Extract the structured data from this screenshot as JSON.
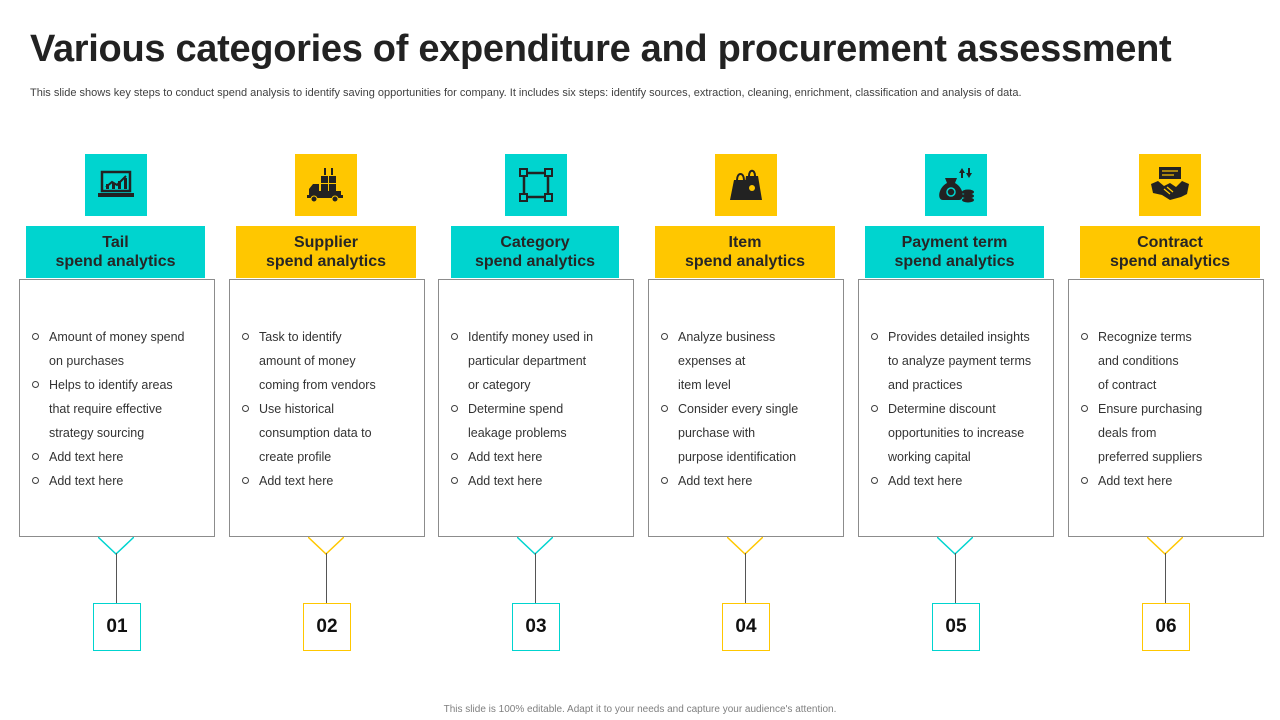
{
  "page": {
    "title": "Various categories of expenditure and procurement assessment",
    "subtitle": "This slide shows key steps to conduct spend analysis to identify saving opportunities for company. It includes six steps: identify sources, extraction, cleaning, enrichment, classification and analysis of data.",
    "footer": "This slide is 100% editable. Adapt it to your needs and capture your audience's attention."
  },
  "colors": {
    "teal": "#00d4cf",
    "yellow": "#ffc700",
    "text": "#262626"
  },
  "steps": [
    {
      "number": "01",
      "color": "teal",
      "icon": "laptop-chart-icon",
      "heading": "Tail\nspend analytics",
      "bullets": [
        "Amount of money spend\non purchases",
        "Helps to identify areas\nthat require  effective\nstrategy sourcing",
        "Add text here",
        "Add text here"
      ]
    },
    {
      "number": "02",
      "color": "yellow",
      "icon": "supplier-truck-icon",
      "heading": "Supplier\nspend analytics",
      "bullets": [
        "Task to identify\namount of money\ncoming from vendors",
        "Use historical\nconsumption data to\ncreate profile",
        "Add text here"
      ]
    },
    {
      "number": "03",
      "color": "teal",
      "icon": "category-nodes-icon",
      "heading": "Category\nspend analytics",
      "bullets": [
        "Identify money used in\nparticular department\nor category",
        "Determine spend\nleakage problems",
        "Add text here",
        "Add text here"
      ]
    },
    {
      "number": "04",
      "color": "yellow",
      "icon": "shopping-bags-icon",
      "heading": "Item\nspend analytics",
      "bullets": [
        "Analyze business\nexpenses at\n item level",
        "Consider every single\npurchase with\npurpose identification",
        "Add text here"
      ]
    },
    {
      "number": "05",
      "color": "teal",
      "icon": "money-bag-coins-icon",
      "heading": "Payment term\nspend analytics",
      "bullets": [
        "Provides detailed insights\nto analyze payment terms\nand practices",
        "Determine discount\nopportunities to increase\nworking capital",
        "Add text here"
      ]
    },
    {
      "number": "06",
      "color": "yellow",
      "icon": "handshake-contract-icon",
      "heading": "Contract\nspend analytics",
      "bullets": [
        "Recognize terms\nand conditions\n of contract",
        "Ensure purchasing\ndeals from\npreferred  suppliers",
        "Add text here"
      ]
    }
  ]
}
